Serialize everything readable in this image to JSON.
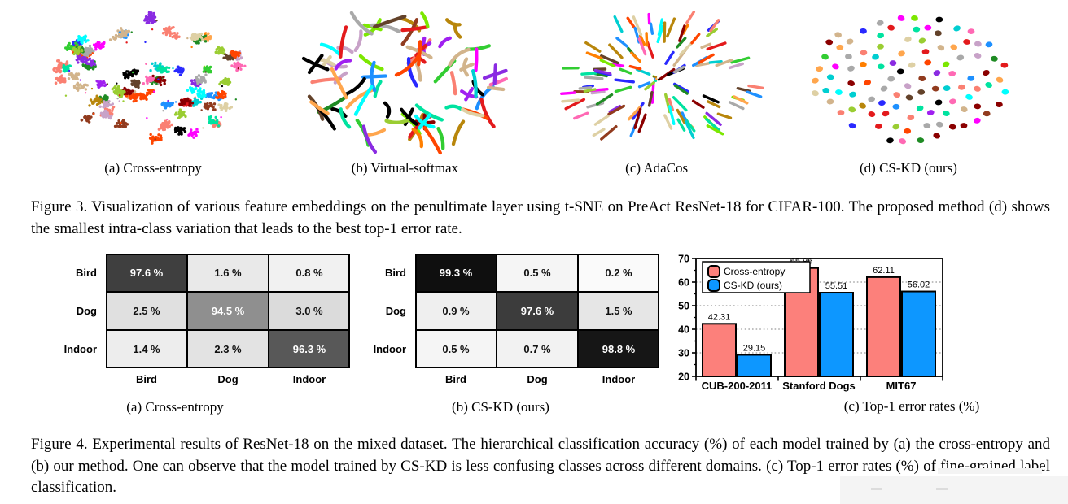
{
  "figure3": {
    "panels": [
      {
        "label": "(a) Cross-entropy",
        "type": "clusters"
      },
      {
        "label": "(b) Virtual-softmax",
        "type": "strokes"
      },
      {
        "label": "(c) AdaCos",
        "type": "radial"
      },
      {
        "label": "(d) CS-KD (ours)",
        "type": "dots"
      }
    ],
    "palette": [
      "#e31a1c",
      "#ff4500",
      "#ff7f00",
      "#ffa64d",
      "#b8860b",
      "#d2b48c",
      "#ded0a4",
      "#9acd32",
      "#7ce700",
      "#32cd32",
      "#1f8b24",
      "#00e3a0",
      "#00ced1",
      "#00ffff",
      "#1e90ff",
      "#2929ff",
      "#8a2be2",
      "#a020f0",
      "#ff00ff",
      "#ff69b4",
      "#fa8072",
      "#8b0000",
      "#913b1e",
      "#63422a",
      "#000000",
      "#a9a9a9",
      "#c8a2c8"
    ],
    "caption": "Figure 3.  Visualization of various feature embeddings on the penultimate layer using t-SNE on PreAct ResNet-18 for CIFAR-100. The proposed method (d) shows the smallest intra-class variation that leads to the best top-1 error rate."
  },
  "figure4": {
    "matrices": [
      {
        "label": "(a) Cross-entropy",
        "row_labels": [
          "Bird",
          "Dog",
          "Indoor"
        ],
        "col_labels": [
          "Bird",
          "Dog",
          "Indoor"
        ],
        "cells": [
          [
            {
              "text": "97.6 %",
              "bg": "#3f3f3f",
              "fg": "#ffffff"
            },
            {
              "text": "1.6 %",
              "bg": "#e9e9e9",
              "fg": "#111111"
            },
            {
              "text": "0.8 %",
              "bg": "#f1f1f1",
              "fg": "#111111"
            }
          ],
          [
            {
              "text": "2.5 %",
              "bg": "#e0e0e0",
              "fg": "#111111"
            },
            {
              "text": "94.5 %",
              "bg": "#8f8f8f",
              "fg": "#ffffff"
            },
            {
              "text": "3.0 %",
              "bg": "#dbdbdb",
              "fg": "#111111"
            }
          ],
          [
            {
              "text": "1.4 %",
              "bg": "#ededed",
              "fg": "#111111"
            },
            {
              "text": "2.3 %",
              "bg": "#e3e3e3",
              "fg": "#111111"
            },
            {
              "text": "96.3 %",
              "bg": "#585858",
              "fg": "#ffffff"
            }
          ]
        ]
      },
      {
        "label": "(b) CS-KD (ours)",
        "row_labels": [
          "Bird",
          "Dog",
          "Indoor"
        ],
        "col_labels": [
          "Bird",
          "Dog",
          "Indoor"
        ],
        "cells": [
          [
            {
              "text": "99.3 %",
              "bg": "#0f0f0f",
              "fg": "#ffffff"
            },
            {
              "text": "0.5 %",
              "bg": "#f5f5f5",
              "fg": "#111111"
            },
            {
              "text": "0.2 %",
              "bg": "#fafafa",
              "fg": "#111111"
            }
          ],
          [
            {
              "text": "0.9 %",
              "bg": "#efefef",
              "fg": "#111111"
            },
            {
              "text": "97.6 %",
              "bg": "#3c3c3c",
              "fg": "#ffffff"
            },
            {
              "text": "1.5 %",
              "bg": "#e6e6e6",
              "fg": "#111111"
            }
          ],
          [
            {
              "text": "0.5 %",
              "bg": "#f5f5f5",
              "fg": "#111111"
            },
            {
              "text": "0.7 %",
              "bg": "#f2f2f2",
              "fg": "#111111"
            },
            {
              "text": "98.8 %",
              "bg": "#161616",
              "fg": "#ffffff"
            }
          ]
        ]
      }
    ],
    "chart_caption": "(c) Top-1 error rates (%)",
    "caption": "Figure 4. Experimental results of ResNet-18 on the mixed dataset. The hierarchical classification accuracy (%) of each model trained by (a) the cross-entropy and (b) our method. One can observe that the model trained by CS-KD is less confusing classes across different domains. (c) Top-1 error rates (%) of fine-grained label classification."
  },
  "chart_data": [
    {
      "type": "heatmap",
      "title": "(a) Cross-entropy",
      "rows": [
        "Bird",
        "Dog",
        "Indoor"
      ],
      "cols": [
        "Bird",
        "Dog",
        "Indoor"
      ],
      "values": [
        [
          97.6,
          1.6,
          0.8
        ],
        [
          2.5,
          94.5,
          3.0
        ],
        [
          1.4,
          2.3,
          96.3
        ]
      ],
      "unit": "%"
    },
    {
      "type": "heatmap",
      "title": "(b) CS-KD (ours)",
      "rows": [
        "Bird",
        "Dog",
        "Indoor"
      ],
      "cols": [
        "Bird",
        "Dog",
        "Indoor"
      ],
      "values": [
        [
          99.3,
          0.5,
          0.2
        ],
        [
          0.9,
          97.6,
          1.5
        ],
        [
          0.5,
          0.7,
          98.8
        ]
      ],
      "unit": "%"
    },
    {
      "type": "bar",
      "title": "(c) Top-1 error rates (%)",
      "categories": [
        "CUB-200-2011",
        "Stanford Dogs",
        "MIT67"
      ],
      "series": [
        {
          "name": "Cross-entropy",
          "color": "#fc807b",
          "values": [
            42.31,
            65.96,
            62.11
          ]
        },
        {
          "name": "CS-KD (ours)",
          "color": "#0d97ff",
          "values": [
            29.15,
            55.51,
            56.02
          ]
        }
      ],
      "ylim": [
        20,
        70
      ],
      "yticks": [
        20,
        30,
        40,
        50,
        60,
        70
      ],
      "xlabel": "",
      "ylabel": "",
      "grid": "horizontal-dotted",
      "legend_position": "top-left"
    }
  ]
}
